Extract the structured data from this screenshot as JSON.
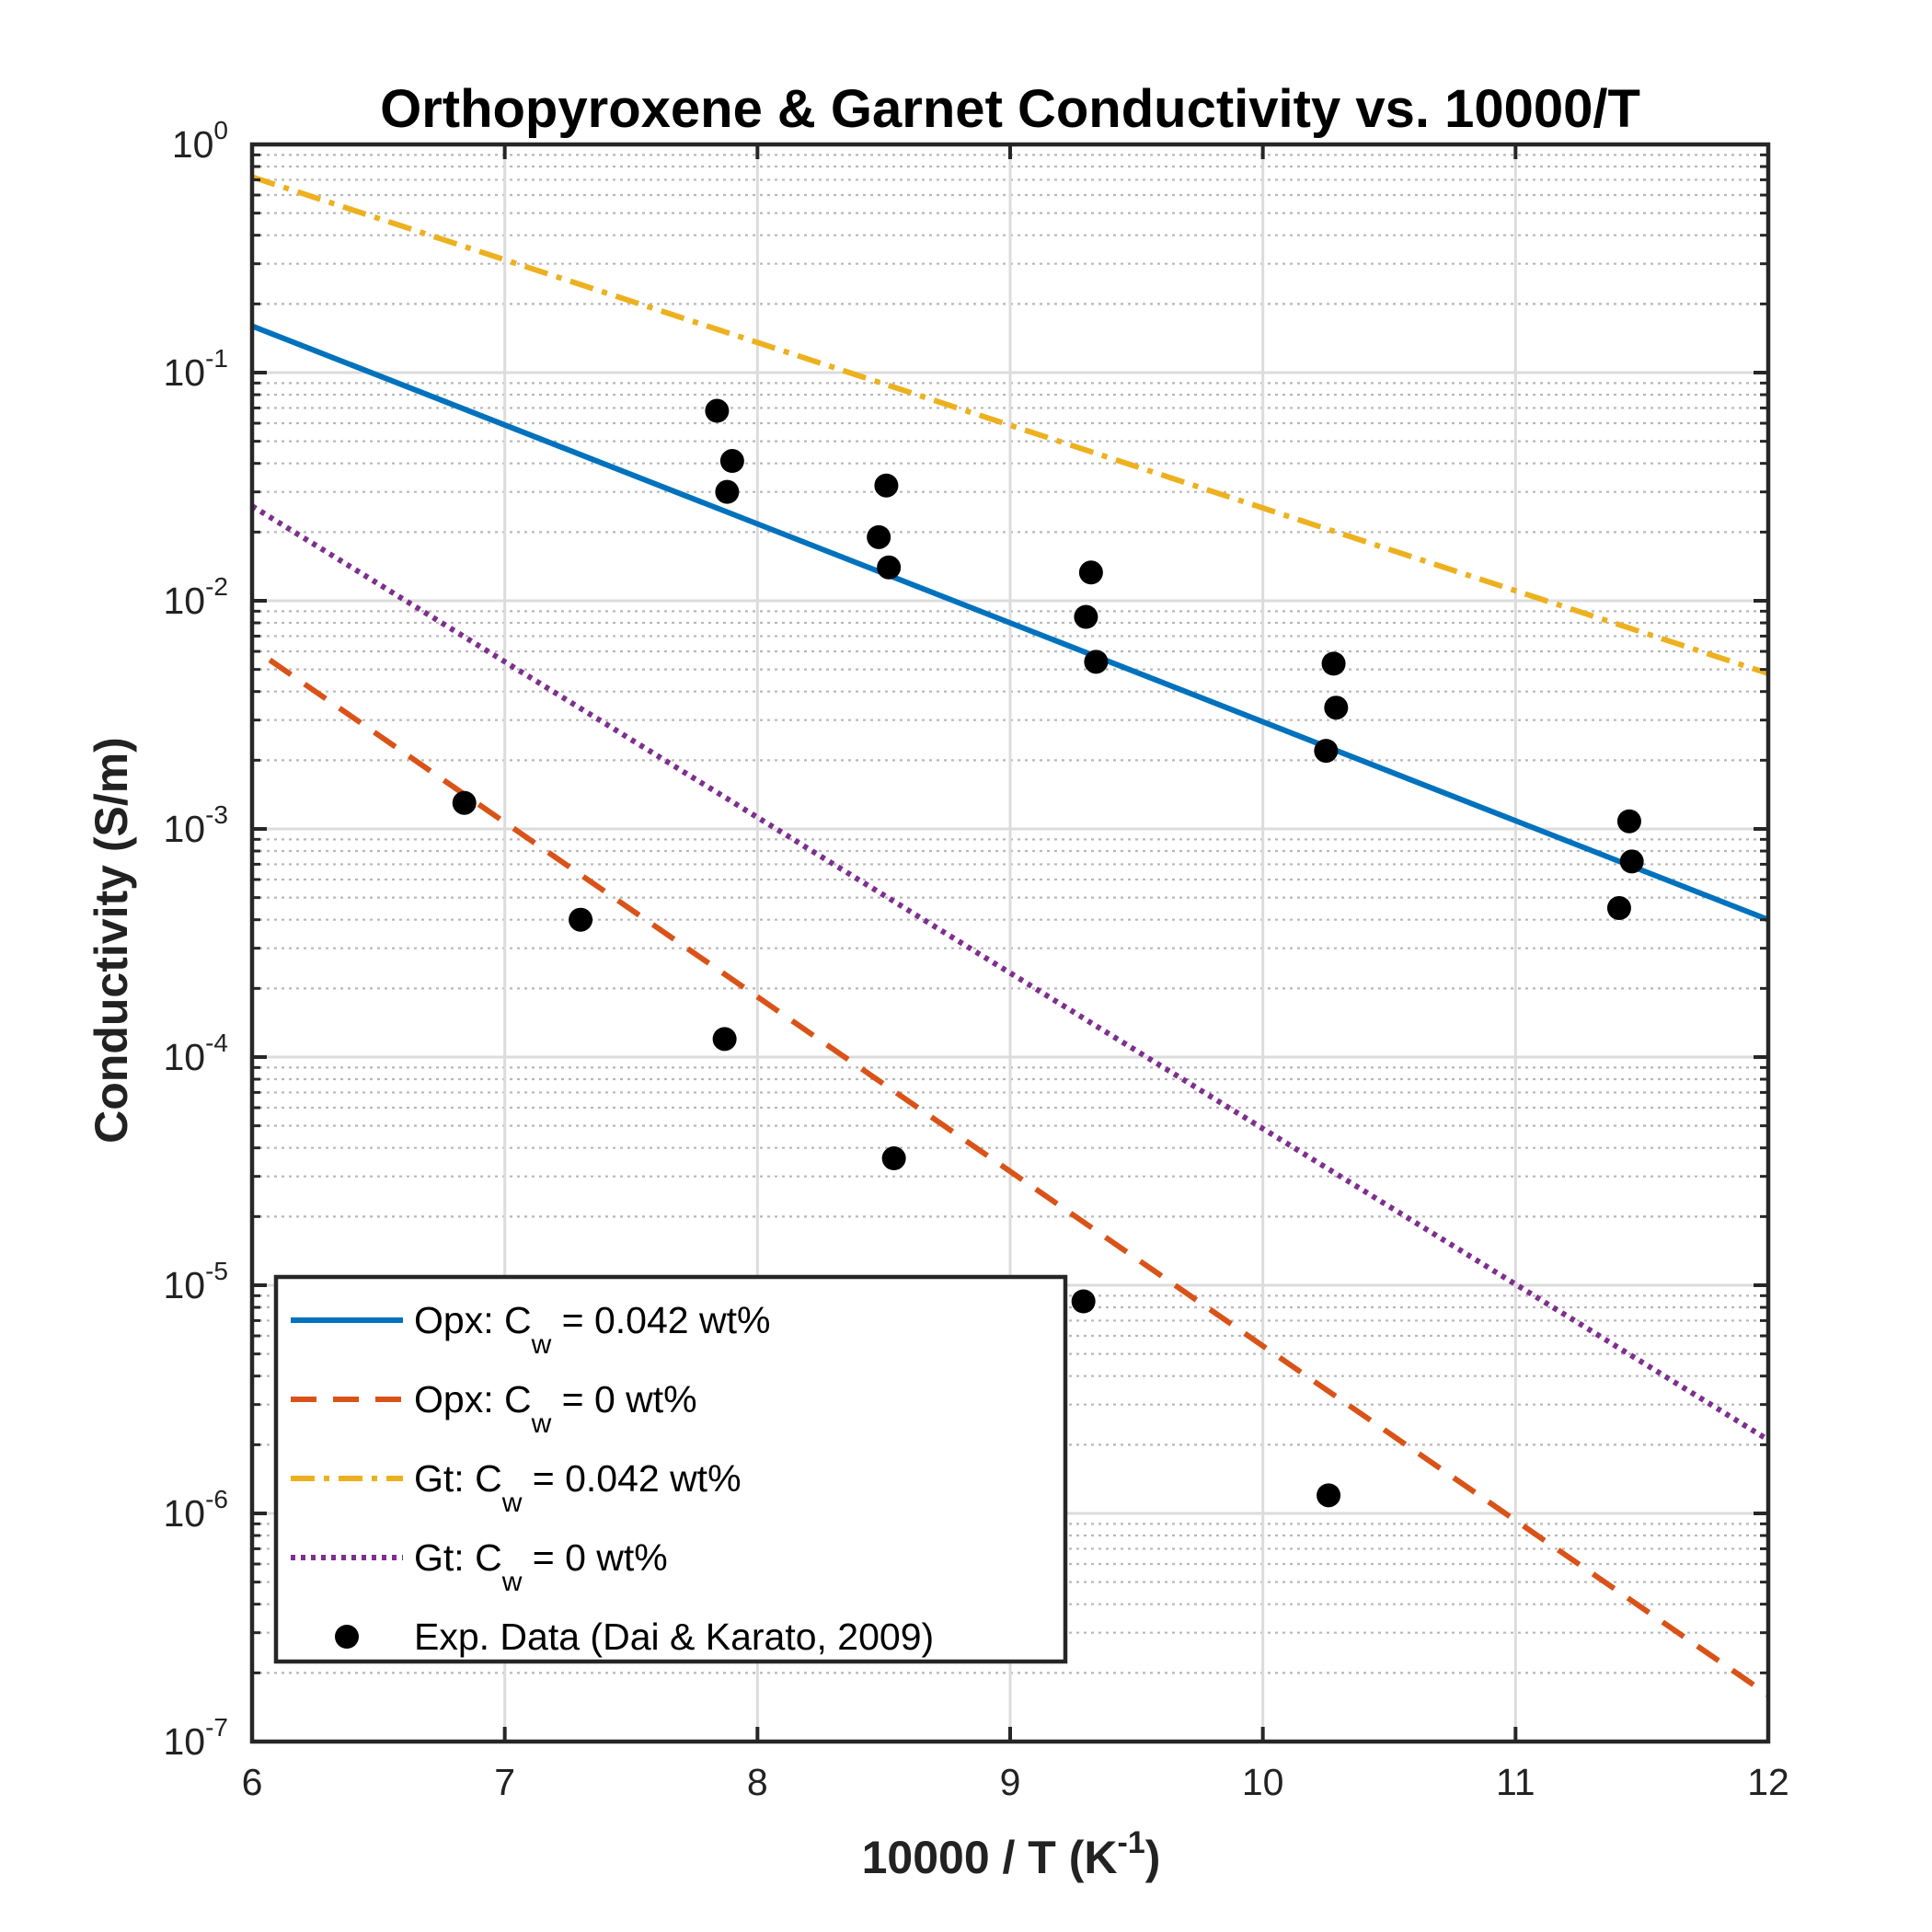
{
  "chart_data": {
    "type": "scatter",
    "title": "Orthopyroxene & Garnet Conductivity vs. 10000/T",
    "xlabel": {
      "main": "10000 / T (K",
      "sup": "-1",
      "close": ")"
    },
    "ylabel": "Conductivity (S/m)",
    "x_scale": "linear",
    "y_scale": "log",
    "xlim": [
      6,
      12
    ],
    "ylim": [
      1e-07,
      1
    ],
    "x_ticks": [
      6,
      7,
      8,
      9,
      10,
      11,
      12
    ],
    "x_tick_labels": [
      "6",
      "7",
      "8",
      "9",
      "10",
      "11",
      "12"
    ],
    "y_ticks": [
      1e-07,
      1e-06,
      1e-05,
      0.0001,
      0.001,
      0.01,
      0.1,
      1
    ],
    "y_tick_labels": [
      {
        "base": "10",
        "exp": "-7"
      },
      {
        "base": "10",
        "exp": "-6"
      },
      {
        "base": "10",
        "exp": "-5"
      },
      {
        "base": "10",
        "exp": "-4"
      },
      {
        "base": "10",
        "exp": "-3"
      },
      {
        "base": "10",
        "exp": "-2"
      },
      {
        "base": "10",
        "exp": "-1"
      },
      {
        "base": "10",
        "exp": "0"
      }
    ],
    "grid": true,
    "minor_grid": true,
    "legend_position": "bottom-left",
    "series": [
      {
        "name": {
          "pre": "Opx: C",
          "sub": "w",
          "post": " = 0.042 wt%"
        },
        "kind": "line",
        "style": "solid",
        "color": "#0072BD",
        "x": [
          6,
          12
        ],
        "y": [
          0.16,
          0.0004
        ]
      },
      {
        "name": {
          "pre": "Opx: C",
          "sub": "w",
          "post": " = 0 wt%"
        },
        "kind": "line",
        "style": "dashed",
        "color": "#D95319",
        "x": [
          6.07,
          12
        ],
        "y": [
          0.0055,
          1.6e-07
        ]
      },
      {
        "name": {
          "pre": "Gt: C",
          "sub": "w",
          "post": " = 0.042 wt%"
        },
        "kind": "line",
        "style": "dashdot",
        "color": "#EDB120",
        "x": [
          6,
          12
        ],
        "y": [
          0.72,
          0.0048
        ]
      },
      {
        "name": {
          "pre": "Gt: C",
          "sub": "w",
          "post": " = 0 wt%"
        },
        "kind": "line",
        "style": "dotted",
        "color": "#7E2F8E",
        "x": [
          6,
          12
        ],
        "y": [
          0.026,
          2.1e-06
        ]
      },
      {
        "name": {
          "pre": "Exp. Data (Dai & Karato, 2009)",
          "sub": "",
          "post": ""
        },
        "kind": "scatter",
        "color": "#000000",
        "x": [
          7.84,
          7.9,
          7.88,
          8.51,
          8.48,
          8.52,
          9.32,
          9.3,
          9.34,
          10.28,
          10.29,
          10.25,
          11.45,
          11.46,
          11.41,
          6.84,
          7.3,
          7.87,
          8.54,
          9.29,
          10.26
        ],
        "y": [
          0.068,
          0.041,
          0.03,
          0.032,
          0.019,
          0.014,
          0.0133,
          0.0085,
          0.0054,
          0.0053,
          0.0034,
          0.0022,
          0.00108,
          0.00072,
          0.00045,
          0.0013,
          0.0004,
          0.00012,
          3.6e-05,
          8.5e-06,
          1.2e-06
        ]
      }
    ]
  }
}
